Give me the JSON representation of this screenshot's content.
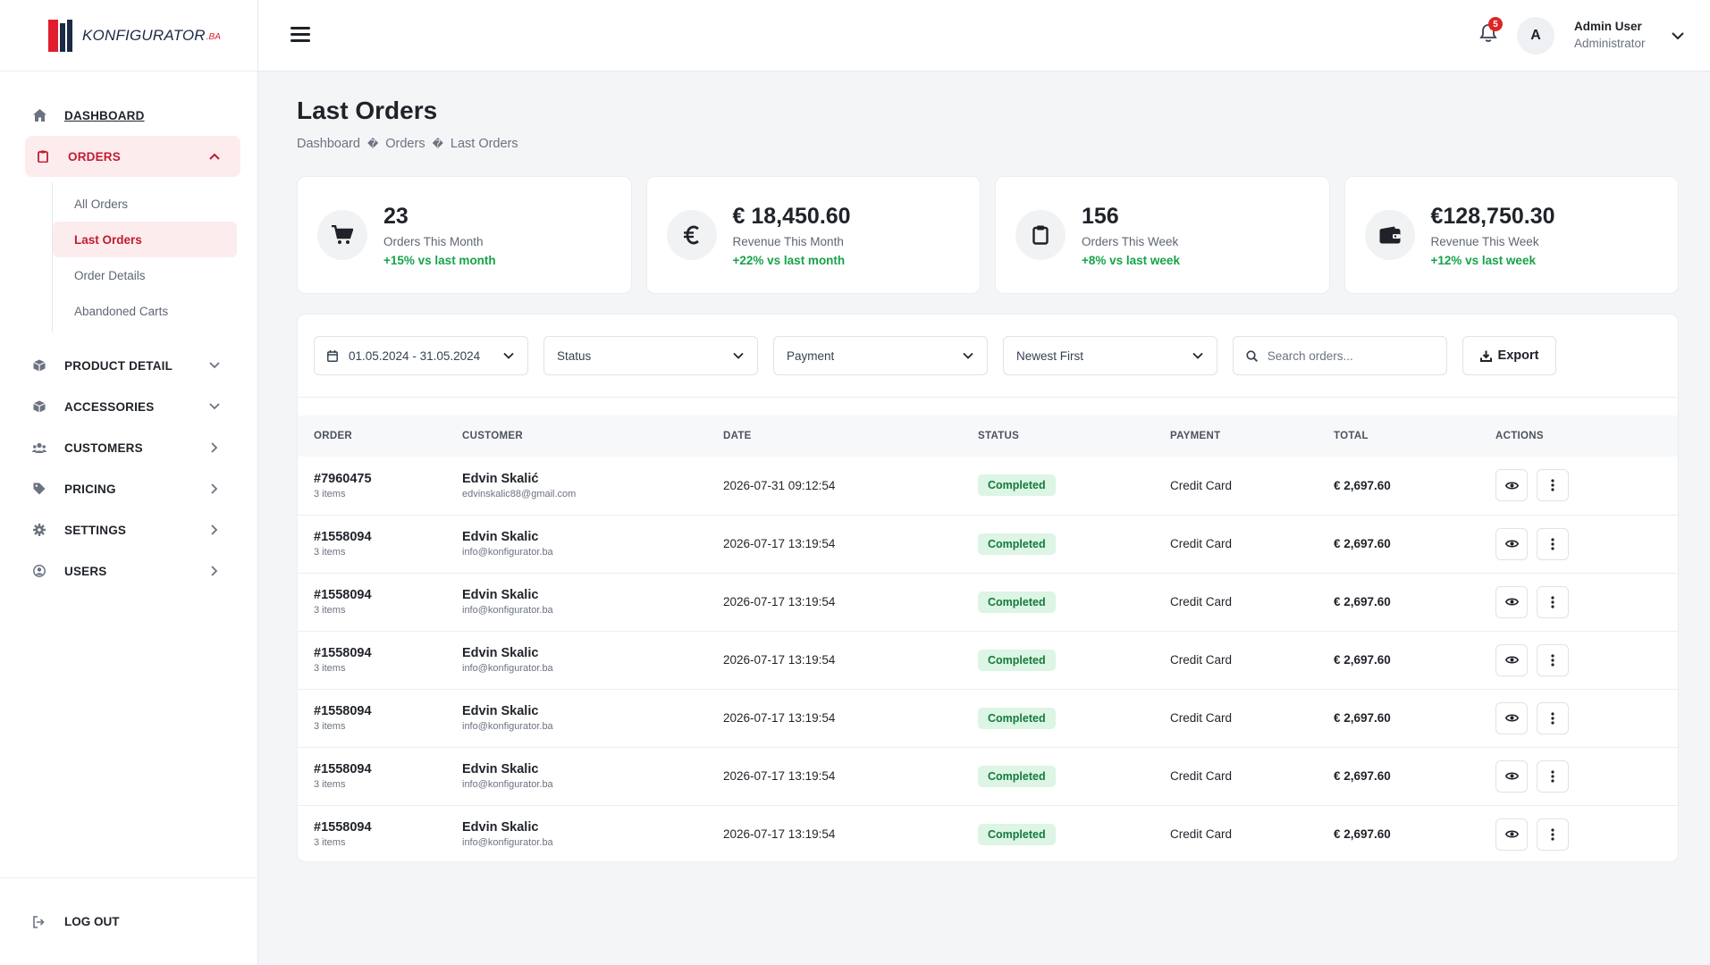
{
  "brand": {
    "name": "KONFIGURATOR",
    "suffix": ".BA"
  },
  "sidebar": {
    "items": [
      {
        "label": "DASHBOARD",
        "icon": "home-icon"
      },
      {
        "label": "ORDERS",
        "icon": "clipboard-icon"
      },
      {
        "label": "PRODUCT DETAIL",
        "icon": "box-icon"
      },
      {
        "label": "ACCESSORIES",
        "icon": "box-icon"
      },
      {
        "label": "CUSTOMERS",
        "icon": "users-icon"
      },
      {
        "label": "PRICING",
        "icon": "tag-icon"
      },
      {
        "label": "SETTINGS",
        "icon": "gear-icon"
      },
      {
        "label": "USERS",
        "icon": "user-circle-icon"
      }
    ],
    "orders_sub": [
      "All Orders",
      "Last Orders",
      "Order Details",
      "Abandoned Carts"
    ],
    "logout": "LOG OUT"
  },
  "header": {
    "notifications": "5",
    "avatar_initial": "A",
    "user_name": "Admin User",
    "user_role": "Administrator"
  },
  "page": {
    "title": "Last Orders",
    "breadcrumb": [
      "Dashboard",
      "Orders",
      "Last Orders"
    ],
    "breadcrumb_sep": "\u0000"
  },
  "stats": [
    {
      "value": "23",
      "label": "Orders This Month",
      "trend": "+15% vs last month",
      "icon": "cart-icon"
    },
    {
      "value": "€ 18,450.60",
      "label": "Revenue This Month",
      "trend": "+22% vs last month",
      "icon": "euro-icon"
    },
    {
      "value": "156",
      "label": "Orders This Week",
      "trend": "+8% vs last week",
      "icon": "clipboard-icon"
    },
    {
      "value": "€128,750.30",
      "label": "Revenue This Week",
      "trend": "+12% vs last week",
      "icon": "wallet-icon"
    }
  ],
  "filters": {
    "date_range": "01.05.2024 - 31.05.2024",
    "status": "Status",
    "payment": "Payment",
    "sort": "Newest First",
    "search_placeholder": "Search orders...",
    "export": "Export"
  },
  "table": {
    "columns": [
      "ORDER",
      "CUSTOMER",
      "DATE",
      "STATUS",
      "PAYMENT",
      "TOTAL",
      "ACTIONS"
    ],
    "rows": [
      {
        "order": "#7960475",
        "items": "3 items",
        "customer": "Edvin Skalić",
        "email": "edvinskalic88@gmail.com",
        "date": "2026-07-31 09:12:54",
        "status": "Completed",
        "payment": "Credit Card",
        "total": "€ 2,697.60"
      },
      {
        "order": "#1558094",
        "items": "3 items",
        "customer": "Edvin Skalic",
        "email": "info@konfigurator.ba",
        "date": "2026-07-17 13:19:54",
        "status": "Completed",
        "payment": "Credit Card",
        "total": "€ 2,697.60"
      },
      {
        "order": "#1558094",
        "items": "3 items",
        "customer": "Edvin Skalic",
        "email": "info@konfigurator.ba",
        "date": "2026-07-17 13:19:54",
        "status": "Completed",
        "payment": "Credit Card",
        "total": "€ 2,697.60"
      },
      {
        "order": "#1558094",
        "items": "3 items",
        "customer": "Edvin Skalic",
        "email": "info@konfigurator.ba",
        "date": "2026-07-17 13:19:54",
        "status": "Completed",
        "payment": "Credit Card",
        "total": "€ 2,697.60"
      },
      {
        "order": "#1558094",
        "items": "3 items",
        "customer": "Edvin Skalic",
        "email": "info@konfigurator.ba",
        "date": "2026-07-17 13:19:54",
        "status": "Completed",
        "payment": "Credit Card",
        "total": "€ 2,697.60"
      },
      {
        "order": "#1558094",
        "items": "3 items",
        "customer": "Edvin Skalic",
        "email": "info@konfigurator.ba",
        "date": "2026-07-17 13:19:54",
        "status": "Completed",
        "payment": "Credit Card",
        "total": "€ 2,697.60"
      },
      {
        "order": "#1558094",
        "items": "3 items",
        "customer": "Edvin Skalic",
        "email": "info@konfigurator.ba",
        "date": "2026-07-17 13:19:54",
        "status": "Completed",
        "payment": "Credit Card",
        "total": "€ 2,697.60"
      }
    ]
  },
  "colors": {
    "accent": "#c21b2f",
    "accent_bg": "#fdecee",
    "success": "#15a34a",
    "badge_bg": "#dcf5e4"
  }
}
